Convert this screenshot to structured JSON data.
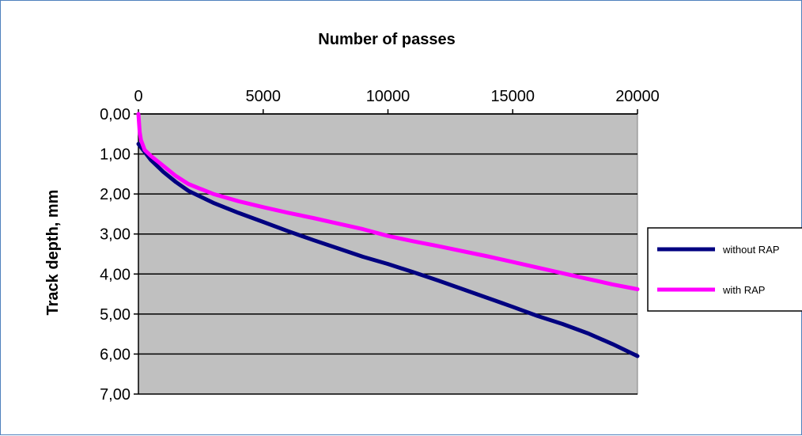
{
  "chart_data": {
    "type": "line",
    "title": "Number of passes",
    "xlabel": "",
    "ylabel": "Track depth, mm",
    "xlim": [
      0,
      20000
    ],
    "ylim": [
      0,
      7
    ],
    "y_inverted": true,
    "x_axis_position": "top",
    "x_ticks": [
      "0",
      "5000",
      "10000",
      "15000",
      "20000"
    ],
    "y_ticks": [
      "0,00",
      "1,00",
      "2,00",
      "3,00",
      "4,00",
      "5,00",
      "6,00",
      "7,00"
    ],
    "grid": "horizontal",
    "plot_background": "#c0c0c0",
    "legend": "right",
    "series": [
      {
        "name": "without RAP",
        "color": "#000080",
        "x": [
          0,
          250,
          500,
          1000,
          1500,
          2000,
          3000,
          4000,
          5000,
          6000,
          7000,
          8000,
          9000,
          10000,
          11000,
          12000,
          13000,
          14000,
          15000,
          16000,
          17000,
          18000,
          19000,
          20000
        ],
        "y": [
          0.75,
          0.95,
          1.15,
          1.45,
          1.7,
          1.92,
          2.22,
          2.47,
          2.7,
          2.93,
          3.15,
          3.36,
          3.57,
          3.75,
          3.95,
          4.16,
          4.38,
          4.6,
          4.82,
          5.05,
          5.25,
          5.48,
          5.75,
          6.05
        ]
      },
      {
        "name": "with RAP",
        "color": "#ff00ff",
        "x": [
          0,
          50,
          100,
          250,
          500,
          1000,
          1500,
          2000,
          3000,
          4000,
          5000,
          6000,
          7000,
          8000,
          9000,
          10000,
          11000,
          12000,
          13000,
          14000,
          15000,
          16000,
          17000,
          18000,
          19000,
          20000
        ],
        "y": [
          0.0,
          0.45,
          0.65,
          0.9,
          1.05,
          1.3,
          1.55,
          1.75,
          2.0,
          2.18,
          2.33,
          2.47,
          2.6,
          2.74,
          2.88,
          3.05,
          3.18,
          3.3,
          3.43,
          3.56,
          3.7,
          3.84,
          3.98,
          4.12,
          4.26,
          4.38
        ]
      }
    ]
  }
}
